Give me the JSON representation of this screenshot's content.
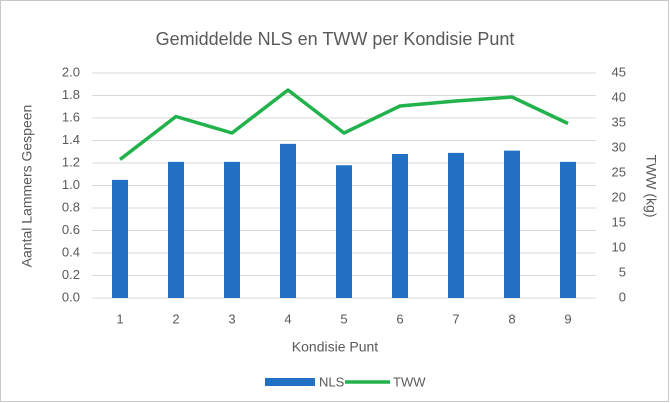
{
  "chart_data": {
    "type": "bar",
    "title": "Gemiddelde NLS en TWW per Kondisie Punt",
    "x_label": "Kondisie Punt",
    "y_label": "Aantal Lammers Gespeen",
    "y2_label": "TWW (kg)",
    "categories": [
      "1",
      "2",
      "3",
      "4",
      "5",
      "6",
      "7",
      "8",
      "9"
    ],
    "series": [
      {
        "name": "NLS",
        "type": "bar",
        "color": "#2170c4",
        "values": [
          1.05,
          1.21,
          1.21,
          1.37,
          1.18,
          1.28,
          1.29,
          1.31,
          1.21
        ]
      },
      {
        "name": "TWW",
        "type": "line",
        "axis": "y2",
        "color": "#22b24c",
        "values": [
          27.7,
          36.3,
          33.0,
          41.6,
          33.0,
          38.4,
          39.4,
          40.2,
          34.9
        ]
      }
    ],
    "ylim": [
      0,
      2
    ],
    "yticks": [
      {
        "value": 0,
        "label": "0.0"
      },
      {
        "value": 0.2,
        "label": "0.2"
      },
      {
        "value": 0.4,
        "label": "0.4"
      },
      {
        "value": 0.6,
        "label": "0.6"
      },
      {
        "value": 0.8,
        "label": "0.8"
      },
      {
        "value": 1,
        "label": "1.0"
      },
      {
        "value": 1.2,
        "label": "1.2"
      },
      {
        "value": 1.4,
        "label": "1.4"
      },
      {
        "value": 1.6,
        "label": "1.6"
      },
      {
        "value": 1.8,
        "label": "1.8"
      },
      {
        "value": 2,
        "label": "2.0"
      }
    ],
    "y2lim": [
      0,
      45
    ],
    "y2ticks": [
      0,
      5,
      10,
      15,
      20,
      25,
      30,
      35,
      40,
      45
    ],
    "grid": true,
    "legend": "bottom"
  }
}
